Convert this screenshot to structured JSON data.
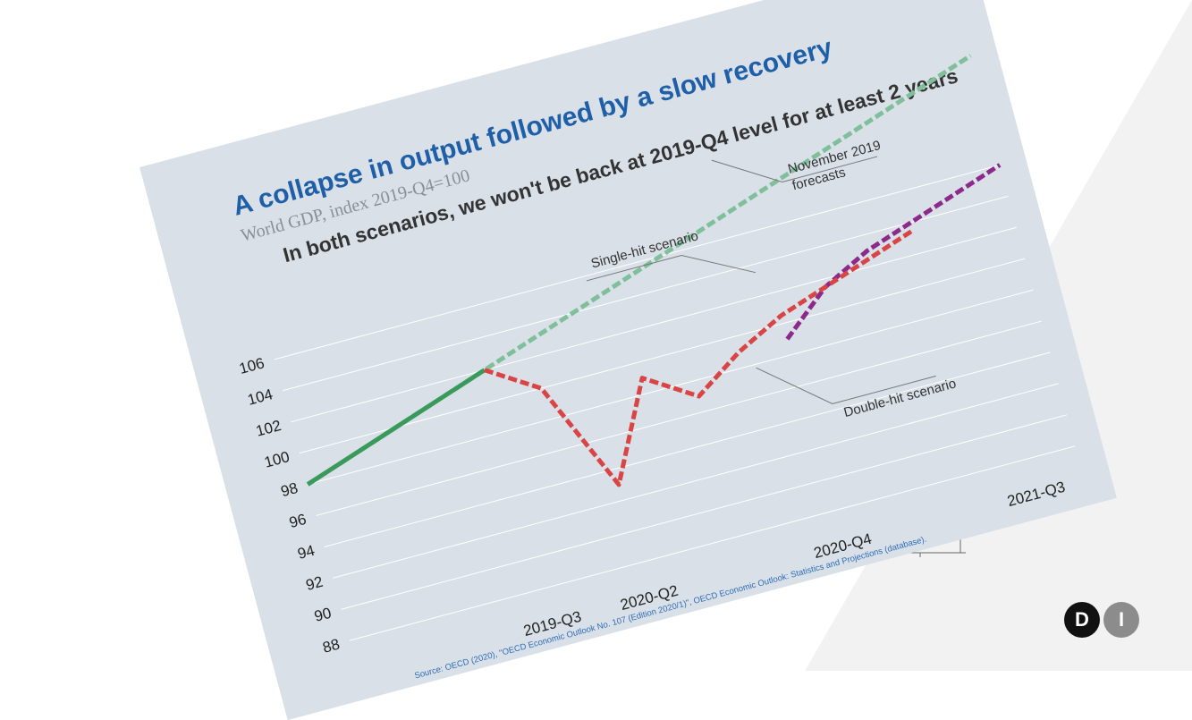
{
  "chart_data": {
    "type": "line",
    "title": "A collapse in output followed by a slow recovery",
    "subtitle": "World GDP, index 2019-Q4=100",
    "headline": "In both scenarios, we won't be back at 2019-Q4 level for at least 2 years",
    "x_tick_labels": [
      "2019-Q3",
      "2020-Q2",
      "2020-Q4",
      "2021-Q3"
    ],
    "y_ticks": [
      88,
      90,
      92,
      94,
      96,
      98,
      100,
      102,
      104,
      106
    ],
    "ylim": [
      87,
      113
    ],
    "x": [
      "2018-Q1",
      "2018-Q2",
      "2018-Q3",
      "2018-Q4",
      "2019-Q1",
      "2019-Q2",
      "2019-Q3",
      "2019-Q4",
      "2020-Q1",
      "2020-Q2",
      "2020-Q3",
      "2020-Q4",
      "2021-Q1",
      "2021-Q2",
      "2021-Q3",
      "2021-Q4"
    ],
    "series": [
      {
        "name": "November 2019 forecasts",
        "color": "#7fbf9a",
        "dashed": true,
        "points": [
          [
            "2018-Q1",
            98
          ],
          [
            "2018-Q2",
            99
          ],
          [
            "2018-Q3",
            100
          ],
          [
            "2018-Q4",
            101
          ],
          [
            "2019-Q1",
            102
          ],
          [
            "2019-Q2",
            103
          ],
          [
            "2019-Q3",
            104
          ],
          [
            "2019-Q4",
            105
          ],
          [
            "2020-Q1",
            106
          ],
          [
            "2020-Q2",
            107
          ],
          [
            "2020-Q3",
            108
          ],
          [
            "2020-Q4",
            109
          ],
          [
            "2021-Q1",
            110
          ],
          [
            "2021-Q2",
            111
          ],
          [
            "2021-Q3",
            112
          ],
          [
            "2021-Q4",
            113
          ]
        ]
      },
      {
        "name": "",
        "color": "#3a9a5b",
        "dashed": false,
        "points": [
          [
            "2018-Q1",
            98
          ],
          [
            "2018-Q2",
            99
          ],
          [
            "2018-Q3",
            100
          ],
          [
            "2018-Q4",
            101
          ],
          [
            "2019-Q1",
            102
          ]
        ]
      },
      {
        "name": "Single-hit scenario",
        "color": "#8b2a8b",
        "dashed": true,
        "points": [
          [
            "2020-Q3",
            99
          ],
          [
            "2020-Q4",
            101.5
          ],
          [
            "2021-Q1",
            103
          ],
          [
            "2021-Q2",
            104
          ],
          [
            "2021-Q3",
            105
          ],
          [
            "2021-Q4",
            106
          ]
        ]
      },
      {
        "name": "Double-hit scenario",
        "color": "#d94444",
        "dashed": true,
        "points": [
          [
            "2019-Q1",
            102
          ],
          [
            "2019-Q2",
            100
          ],
          [
            "2019-Q3",
            93
          ],
          [
            "2019-Q4",
            99
          ],
          [
            "2020-Q1",
            97
          ],
          [
            "2020-Q2",
            99
          ],
          [
            "2020-Q3",
            100.5
          ],
          [
            "2020-Q4",
            101.5
          ],
          [
            "2021-Q1",
            102.5
          ],
          [
            "2021-Q2",
            103.5
          ]
        ]
      }
    ],
    "annotations": [
      "November 2019",
      "forecasts",
      "Single-hit scenario",
      "Double-hit scenario"
    ],
    "source": "Source: OECD (2020), \"OECD Economic Outlook No. 107 (Edition 2020/1)\", OECD Economic Outlook: Statistics and Projections (database).",
    "grid": true
  },
  "colors": {
    "title": "#1f5fa8",
    "card_bg": "#d9e0e8",
    "logo_d": "#111111",
    "logo_i": "#8c8c8c"
  },
  "logo": {
    "d": "D",
    "i": "I"
  }
}
